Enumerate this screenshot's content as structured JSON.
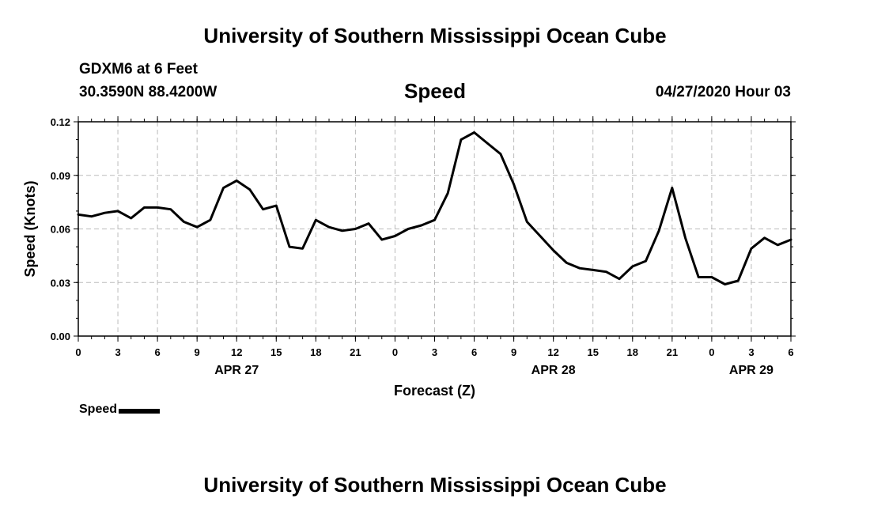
{
  "header": {
    "title": "University of Southern Mississippi Ocean Cube",
    "station": "GDXM6 at 6 Feet",
    "coords": "30.3590N 88.4200W",
    "subtitle": "Speed",
    "run_time": "04/27/2020 Hour 03"
  },
  "footer": {
    "title": "University of Southern Mississippi Ocean Cube"
  },
  "legend": {
    "label": "Speed",
    "color": "#000000"
  },
  "chart_data": {
    "type": "line",
    "title": "Speed",
    "xlabel": "Forecast (Z)",
    "ylabel": "Speed (Knots)",
    "ylim": [
      0,
      0.12
    ],
    "yticks": [
      "0.00",
      "0.03",
      "0.06",
      "0.09",
      "0.12"
    ],
    "xlim_hours": [
      0,
      54
    ],
    "xtick_labels": [
      "0",
      "3",
      "6",
      "9",
      "12",
      "15",
      "18",
      "21",
      "0",
      "3",
      "6",
      "9",
      "12",
      "15",
      "18",
      "21",
      "0",
      "3",
      "6"
    ],
    "date_labels": [
      {
        "label": "APR 27",
        "hour": 12
      },
      {
        "label": "APR 28",
        "hour": 36
      },
      {
        "label": "APR 29",
        "hour": 51
      }
    ],
    "grid": true,
    "line_color": "#000000",
    "series": [
      {
        "name": "Speed",
        "x": [
          0,
          1,
          2,
          3,
          4,
          5,
          6,
          7,
          8,
          9,
          10,
          11,
          12,
          13,
          14,
          15,
          16,
          17,
          18,
          19,
          20,
          21,
          22,
          23,
          24,
          25,
          26,
          27,
          28,
          29,
          30,
          31,
          32,
          33,
          34,
          35,
          36,
          37,
          38,
          39,
          40,
          41,
          42,
          43,
          44,
          45,
          46,
          47,
          48,
          49,
          50,
          51,
          52,
          53,
          54
        ],
        "values": [
          0.068,
          0.067,
          0.069,
          0.07,
          0.066,
          0.072,
          0.072,
          0.071,
          0.064,
          0.061,
          0.065,
          0.083,
          0.087,
          0.082,
          0.071,
          0.073,
          0.05,
          0.049,
          0.065,
          0.061,
          0.059,
          0.06,
          0.063,
          0.054,
          0.056,
          0.06,
          0.062,
          0.065,
          0.08,
          0.11,
          0.114,
          0.108,
          0.102,
          0.085,
          0.064,
          0.056,
          0.048,
          0.041,
          0.038,
          0.037,
          0.036,
          0.032,
          0.039,
          0.042,
          0.059,
          0.083,
          0.055,
          0.033,
          0.033,
          0.029,
          0.031,
          0.049,
          0.055,
          0.051,
          0.054
        ]
      }
    ]
  }
}
